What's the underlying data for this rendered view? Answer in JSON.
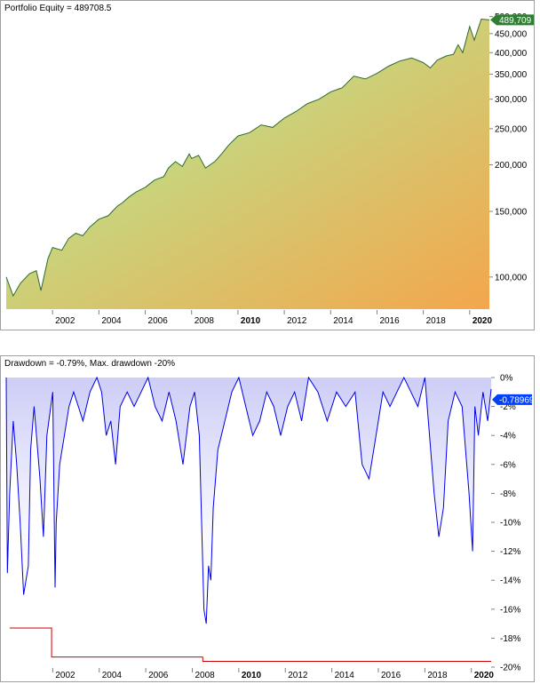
{
  "equity_panel": {
    "title": "Portfolio Equity = 489708.5",
    "last_value_label": "489,709"
  },
  "drawdown_panel": {
    "title": "Drawdown = -0.79%, Max. drawdown -20%",
    "last_value_label": "-0.78969"
  },
  "colors": {
    "equity_line": "#2e6b2e",
    "equity_fill_top": "#f4a64c",
    "equity_fill_bottom": "#a8f5a0",
    "equity_marker": "#2e7d32",
    "drawdown_line": "#0000e6",
    "drawdown_fill_top": "#c8c8f6",
    "maxdd_line": "#cc0000",
    "drawdown_marker": "#0040ff",
    "grid_tick": "#808080"
  },
  "chart_data": [
    {
      "type": "line",
      "title": "Portfolio Equity = 489708.5",
      "yscale": "log",
      "ylim": [
        82000,
        510000
      ],
      "xlim": [
        2000.0,
        2020.85
      ],
      "x_tick_labels": [
        "2002",
        "2004",
        "2006",
        "2008",
        "2010",
        "2012",
        "2014",
        "2016",
        "2018",
        "2020"
      ],
      "x_tick_bold": [
        "2010",
        "2020"
      ],
      "y_tick_labels": [
        "100,000",
        "150,000",
        "200,000",
        "250,000",
        "300,000",
        "350,000",
        "400,000",
        "450,000",
        "500,000"
      ],
      "y_tick_values": [
        100000,
        150000,
        200000,
        250000,
        300000,
        350000,
        400000,
        450000,
        500000
      ],
      "series": [
        {
          "name": "Portfolio Equity",
          "x": [
            2000.0,
            2000.3,
            2000.6,
            2001.0,
            2001.3,
            2001.5,
            2001.8,
            2002.0,
            2002.4,
            2002.7,
            2003.0,
            2003.3,
            2003.6,
            2004.0,
            2004.4,
            2004.8,
            2005.0,
            2005.3,
            2005.6,
            2006.0,
            2006.4,
            2006.8,
            2007.0,
            2007.3,
            2007.6,
            2007.9,
            2008.0,
            2008.3,
            2008.6,
            2009.0,
            2009.3,
            2009.6,
            2010.0,
            2010.5,
            2011.0,
            2011.5,
            2012.0,
            2012.5,
            2013.0,
            2013.5,
            2014.0,
            2014.5,
            2015.0,
            2015.5,
            2016.0,
            2016.5,
            2017.0,
            2017.5,
            2018.0,
            2018.3,
            2018.6,
            2019.0,
            2019.3,
            2019.5,
            2019.7,
            2020.0,
            2020.2,
            2020.5,
            2020.85
          ],
          "values": [
            100000,
            89000,
            96000,
            102000,
            104000,
            92000,
            112000,
            120000,
            118000,
            127000,
            131000,
            129000,
            136000,
            143000,
            146000,
            155000,
            158000,
            164000,
            169000,
            174000,
            182000,
            186000,
            196000,
            204000,
            198000,
            214000,
            208000,
            212000,
            196000,
            204000,
            214000,
            226000,
            239000,
            244000,
            256000,
            252000,
            267000,
            278000,
            292000,
            300000,
            314000,
            322000,
            346000,
            340000,
            352000,
            368000,
            380000,
            387000,
            376000,
            364000,
            382000,
            392000,
            396000,
            420000,
            400000,
            470000,
            432000,
            492000,
            489709
          ]
        }
      ]
    },
    {
      "type": "area",
      "title": "Drawdown = -0.79%, Max. drawdown -20%",
      "ylim": [
        -20,
        0.5
      ],
      "xlim": [
        2000.0,
        2020.85
      ],
      "x_tick_labels": [
        "2002",
        "2004",
        "2006",
        "2008",
        "2010",
        "2012",
        "2014",
        "2016",
        "2018",
        "2020"
      ],
      "x_tick_bold": [
        "2010",
        "2020"
      ],
      "y_tick_labels": [
        "0%",
        "-2%",
        "-4%",
        "-6%",
        "-8%",
        "-10%",
        "-12%",
        "-14%",
        "-16%",
        "-18%",
        "-20%"
      ],
      "y_tick_values": [
        0,
        -2,
        -4,
        -6,
        -8,
        -10,
        -12,
        -14,
        -16,
        -18,
        -20
      ],
      "series": [
        {
          "name": "Drawdown",
          "x": [
            2000.0,
            2000.05,
            2000.15,
            2000.3,
            2000.45,
            2000.6,
            2000.75,
            2000.95,
            2001.05,
            2001.2,
            2001.45,
            2001.6,
            2001.75,
            2002.0,
            2002.1,
            2002.15,
            2002.3,
            2002.5,
            2002.7,
            2002.9,
            2003.1,
            2003.3,
            2003.6,
            2003.9,
            2004.1,
            2004.3,
            2004.5,
            2004.7,
            2004.9,
            2005.2,
            2005.5,
            2005.8,
            2006.1,
            2006.4,
            2006.7,
            2007.0,
            2007.3,
            2007.6,
            2007.9,
            2008.1,
            2008.3,
            2008.4,
            2008.5,
            2008.6,
            2008.7,
            2008.8,
            2008.9,
            2009.1,
            2009.4,
            2009.7,
            2010.0,
            2010.3,
            2010.6,
            2010.9,
            2011.2,
            2011.5,
            2011.8,
            2012.1,
            2012.4,
            2012.7,
            2013.0,
            2013.4,
            2013.8,
            2014.2,
            2014.6,
            2015.0,
            2015.3,
            2015.6,
            2015.9,
            2016.2,
            2016.5,
            2016.8,
            2017.1,
            2017.4,
            2017.7,
            2018.0,
            2018.2,
            2018.4,
            2018.6,
            2018.8,
            2019.0,
            2019.3,
            2019.6,
            2019.9,
            2020.05,
            2020.15,
            2020.3,
            2020.5,
            2020.7,
            2020.85
          ],
          "values": [
            0,
            -13.5,
            -8,
            -3,
            -6,
            -10,
            -15,
            -13,
            -5,
            -2,
            -7,
            -11,
            -4,
            -1,
            -14.5,
            -10,
            -6,
            -4,
            -2,
            -1,
            -2,
            -3,
            -1,
            0,
            -1,
            -4,
            -3,
            -6,
            -2,
            -1,
            -2,
            -1,
            0,
            -2,
            -3,
            -1,
            -3,
            -6,
            -2,
            -1,
            -4,
            -10,
            -16,
            -17,
            -13,
            -14,
            -9,
            -5,
            -3,
            -1,
            0,
            -2,
            -4,
            -3,
            -1,
            -2,
            -4,
            -2,
            -1,
            -3,
            0,
            -1,
            -3,
            -1,
            -2,
            -1,
            -6,
            -7,
            -4,
            -1,
            -2,
            -1,
            0,
            -1,
            -2,
            0,
            -4,
            -8,
            -11,
            -9,
            -3,
            -1,
            -2,
            -8,
            -12,
            -2,
            -4,
            -1,
            -3,
            -0.79
          ]
        },
        {
          "name": "Max. drawdown",
          "x": [
            2000.15,
            2001.95,
            2001.95,
            2008.45,
            2008.45,
            2020.85
          ],
          "values": [
            -17.3,
            -17.3,
            -19.3,
            -19.3,
            -19.6,
            -19.6
          ]
        }
      ]
    }
  ]
}
